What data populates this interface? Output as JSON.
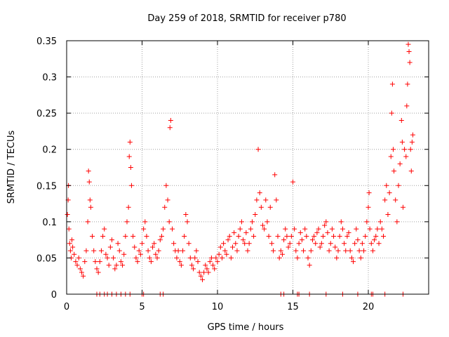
{
  "chart_data": {
    "type": "scatter",
    "title": "Day 259 of 2018, SRMTID for receiver p780",
    "xlabel": "GPS time / hours",
    "ylabel": "SRMTID / TECUs",
    "xlim": [
      0,
      24
    ],
    "ylim": [
      0,
      0.35
    ],
    "xticks": [
      0,
      5,
      10,
      15,
      20
    ],
    "xtick_labels": [
      "0",
      "5",
      "10",
      "15",
      "20"
    ],
    "yticks": [
      0,
      0.05,
      0.1,
      0.15,
      0.2,
      0.25,
      0.3,
      0.35
    ],
    "ytick_labels": [
      "0",
      "0.05",
      "0.1",
      "0.15",
      "0.2",
      "0.25",
      "0.3",
      "0.35"
    ],
    "grid": true,
    "marker": "plus",
    "series": [
      {
        "name": "SRMTID",
        "color": "#ff0000",
        "description": "dense '+' scatter of SRMTID values vs time (sampled from the figure)",
        "points": [
          [
            0.05,
            0.11
          ],
          [
            0.1,
            0.13
          ],
          [
            0.12,
            0.15
          ],
          [
            0.15,
            0.09
          ],
          [
            0.2,
            0.07
          ],
          [
            0.25,
            0.06
          ],
          [
            0.3,
            0.05
          ],
          [
            0.35,
            0.075
          ],
          [
            0.4,
            0.065
          ],
          [
            0.5,
            0.055
          ],
          [
            0.6,
            0.045
          ],
          [
            0.7,
            0.04
          ],
          [
            0.8,
            0.05
          ],
          [
            0.9,
            0.035
          ],
          [
            1.0,
            0.03
          ],
          [
            1.1,
            0.025
          ],
          [
            1.2,
            0.045
          ],
          [
            1.3,
            0.06
          ],
          [
            1.4,
            0.1
          ],
          [
            1.45,
            0.17
          ],
          [
            1.5,
            0.155
          ],
          [
            1.55,
            0.13
          ],
          [
            1.6,
            0.12
          ],
          [
            1.7,
            0.08
          ],
          [
            1.8,
            0.06
          ],
          [
            1.9,
            0.045
          ],
          [
            2.0,
            0.035
          ],
          [
            2.1,
            0.03
          ],
          [
            2.2,
            0.045
          ],
          [
            2.3,
            0.06
          ],
          [
            2.4,
            0.08
          ],
          [
            2.5,
            0.09
          ],
          [
            2.6,
            0.055
          ],
          [
            2.7,
            0.05
          ],
          [
            2.8,
            0.04
          ],
          [
            2.9,
            0.065
          ],
          [
            3.0,
            0.075
          ],
          [
            3.1,
            0.05
          ],
          [
            3.2,
            0.035
          ],
          [
            3.3,
            0.04
          ],
          [
            3.4,
            0.07
          ],
          [
            3.5,
            0.06
          ],
          [
            3.6,
            0.045
          ],
          [
            3.7,
            0.04
          ],
          [
            3.8,
            0.055
          ],
          [
            3.9,
            0.08
          ],
          [
            4.0,
            0.1
          ],
          [
            4.1,
            0.12
          ],
          [
            4.15,
            0.19
          ],
          [
            4.2,
            0.21
          ],
          [
            4.25,
            0.175
          ],
          [
            4.3,
            0.15
          ],
          [
            4.4,
            0.08
          ],
          [
            4.5,
            0.065
          ],
          [
            4.6,
            0.05
          ],
          [
            4.7,
            0.045
          ],
          [
            4.8,
            0.06
          ],
          [
            4.9,
            0.055
          ],
          [
            5.0,
            0.07
          ],
          [
            5.1,
            0.09
          ],
          [
            5.2,
            0.1
          ],
          [
            5.3,
            0.08
          ],
          [
            5.4,
            0.06
          ],
          [
            5.5,
            0.05
          ],
          [
            5.6,
            0.045
          ],
          [
            5.7,
            0.065
          ],
          [
            5.8,
            0.07
          ],
          [
            5.9,
            0.055
          ],
          [
            6.0,
            0.05
          ],
          [
            6.1,
            0.06
          ],
          [
            6.2,
            0.075
          ],
          [
            6.3,
            0.08
          ],
          [
            6.4,
            0.09
          ],
          [
            6.5,
            0.12
          ],
          [
            6.6,
            0.15
          ],
          [
            6.7,
            0.13
          ],
          [
            6.8,
            0.1
          ],
          [
            6.85,
            0.23
          ],
          [
            6.9,
            0.24
          ],
          [
            7.0,
            0.09
          ],
          [
            7.1,
            0.07
          ],
          [
            7.2,
            0.06
          ],
          [
            7.3,
            0.05
          ],
          [
            7.4,
            0.06
          ],
          [
            7.5,
            0.045
          ],
          [
            7.6,
            0.04
          ],
          [
            7.7,
            0.06
          ],
          [
            7.8,
            0.08
          ],
          [
            7.9,
            0.11
          ],
          [
            8.0,
            0.1
          ],
          [
            8.1,
            0.07
          ],
          [
            8.2,
            0.05
          ],
          [
            8.3,
            0.04
          ],
          [
            8.4,
            0.035
          ],
          [
            8.5,
            0.05
          ],
          [
            8.6,
            0.06
          ],
          [
            8.7,
            0.045
          ],
          [
            8.8,
            0.03
          ],
          [
            8.9,
            0.025
          ],
          [
            9.0,
            0.02
          ],
          [
            9.1,
            0.03
          ],
          [
            9.2,
            0.04
          ],
          [
            9.3,
            0.035
          ],
          [
            9.4,
            0.03
          ],
          [
            9.5,
            0.045
          ],
          [
            9.6,
            0.05
          ],
          [
            9.7,
            0.04
          ],
          [
            9.8,
            0.035
          ],
          [
            9.9,
            0.05
          ],
          [
            10.0,
            0.045
          ],
          [
            10.1,
            0.055
          ],
          [
            10.2,
            0.065
          ],
          [
            10.3,
            0.05
          ],
          [
            10.4,
            0.07
          ],
          [
            10.5,
            0.06
          ],
          [
            10.6,
            0.055
          ],
          [
            10.7,
            0.075
          ],
          [
            10.8,
            0.08
          ],
          [
            10.9,
            0.05
          ],
          [
            11.0,
            0.065
          ],
          [
            11.1,
            0.085
          ],
          [
            11.2,
            0.07
          ],
          [
            11.3,
            0.06
          ],
          [
            11.4,
            0.08
          ],
          [
            11.5,
            0.09
          ],
          [
            11.6,
            0.1
          ],
          [
            11.7,
            0.075
          ],
          [
            11.8,
            0.07
          ],
          [
            11.9,
            0.085
          ],
          [
            12.0,
            0.06
          ],
          [
            12.1,
            0.07
          ],
          [
            12.2,
            0.09
          ],
          [
            12.3,
            0.1
          ],
          [
            12.4,
            0.08
          ],
          [
            12.5,
            0.11
          ],
          [
            12.6,
            0.13
          ],
          [
            12.7,
            0.2
          ],
          [
            12.8,
            0.14
          ],
          [
            12.9,
            0.12
          ],
          [
            13.0,
            0.095
          ],
          [
            13.1,
            0.09
          ],
          [
            13.2,
            0.13
          ],
          [
            13.3,
            0.1
          ],
          [
            13.4,
            0.08
          ],
          [
            13.5,
            0.12
          ],
          [
            13.6,
            0.07
          ],
          [
            13.7,
            0.06
          ],
          [
            13.8,
            0.165
          ],
          [
            13.9,
            0.13
          ],
          [
            14.0,
            0.08
          ],
          [
            14.1,
            0.05
          ],
          [
            14.2,
            0.06
          ],
          [
            14.3,
            0.055
          ],
          [
            14.4,
            0.075
          ],
          [
            14.5,
            0.09
          ],
          [
            14.6,
            0.08
          ],
          [
            14.7,
            0.065
          ],
          [
            14.8,
            0.07
          ],
          [
            14.9,
            0.08
          ],
          [
            15.0,
            0.155
          ],
          [
            15.1,
            0.09
          ],
          [
            15.2,
            0.06
          ],
          [
            15.3,
            0.05
          ],
          [
            15.4,
            0.07
          ],
          [
            15.5,
            0.085
          ],
          [
            15.6,
            0.075
          ],
          [
            15.7,
            0.06
          ],
          [
            15.8,
            0.09
          ],
          [
            15.9,
            0.08
          ],
          [
            16.0,
            0.05
          ],
          [
            16.1,
            0.04
          ],
          [
            16.2,
            0.06
          ],
          [
            16.3,
            0.075
          ],
          [
            16.4,
            0.08
          ],
          [
            16.5,
            0.07
          ],
          [
            16.6,
            0.085
          ],
          [
            16.7,
            0.09
          ],
          [
            16.8,
            0.065
          ],
          [
            16.9,
            0.07
          ],
          [
            17.0,
            0.08
          ],
          [
            17.1,
            0.095
          ],
          [
            17.2,
            0.1
          ],
          [
            17.3,
            0.085
          ],
          [
            17.4,
            0.06
          ],
          [
            17.5,
            0.07
          ],
          [
            17.6,
            0.09
          ],
          [
            17.7,
            0.08
          ],
          [
            17.8,
            0.065
          ],
          [
            17.9,
            0.05
          ],
          [
            18.0,
            0.06
          ],
          [
            18.1,
            0.08
          ],
          [
            18.2,
            0.1
          ],
          [
            18.3,
            0.09
          ],
          [
            18.4,
            0.07
          ],
          [
            18.5,
            0.06
          ],
          [
            18.6,
            0.08
          ],
          [
            18.7,
            0.085
          ],
          [
            18.8,
            0.06
          ],
          [
            18.9,
            0.05
          ],
          [
            19.0,
            0.045
          ],
          [
            19.1,
            0.07
          ],
          [
            19.2,
            0.09
          ],
          [
            19.3,
            0.075
          ],
          [
            19.4,
            0.06
          ],
          [
            19.5,
            0.05
          ],
          [
            19.6,
            0.07
          ],
          [
            19.7,
            0.06
          ],
          [
            19.8,
            0.08
          ],
          [
            19.9,
            0.1
          ],
          [
            20.0,
            0.12
          ],
          [
            20.05,
            0.14
          ],
          [
            20.1,
            0.09
          ],
          [
            20.2,
            0.07
          ],
          [
            20.3,
            0.06
          ],
          [
            20.4,
            0.075
          ],
          [
            20.5,
            0.08
          ],
          [
            20.6,
            0.09
          ],
          [
            20.7,
            0.07
          ],
          [
            20.8,
            0.1
          ],
          [
            20.9,
            0.09
          ],
          [
            21.0,
            0.08
          ],
          [
            21.1,
            0.13
          ],
          [
            21.2,
            0.15
          ],
          [
            21.3,
            0.11
          ],
          [
            21.4,
            0.14
          ],
          [
            21.5,
            0.19
          ],
          [
            21.55,
            0.25
          ],
          [
            21.6,
            0.29
          ],
          [
            21.65,
            0.2
          ],
          [
            21.7,
            0.17
          ],
          [
            21.8,
            0.13
          ],
          [
            21.9,
            0.1
          ],
          [
            22.0,
            0.15
          ],
          [
            22.1,
            0.18
          ],
          [
            22.2,
            0.24
          ],
          [
            22.25,
            0.21
          ],
          [
            22.3,
            0.12
          ],
          [
            22.4,
            0.2
          ],
          [
            22.5,
            0.19
          ],
          [
            22.55,
            0.26
          ],
          [
            22.6,
            0.29
          ],
          [
            22.65,
            0.345
          ],
          [
            22.7,
            0.335
          ],
          [
            22.75,
            0.32
          ],
          [
            22.8,
            0.2
          ],
          [
            22.85,
            0.17
          ],
          [
            22.9,
            0.21
          ],
          [
            22.95,
            0.22
          ]
        ]
      },
      {
        "name": "zero values",
        "color": "#ff0000",
        "description": "points lying on y = 0",
        "points": [
          [
            2.0,
            0
          ],
          [
            2.2,
            0
          ],
          [
            2.5,
            0
          ],
          [
            2.7,
            0
          ],
          [
            3.0,
            0
          ],
          [
            3.3,
            0
          ],
          [
            3.6,
            0
          ],
          [
            3.9,
            0
          ],
          [
            4.2,
            0
          ],
          [
            5.0,
            0
          ],
          [
            5.1,
            0
          ],
          [
            6.2,
            0
          ],
          [
            6.4,
            0
          ],
          [
            14.2,
            0
          ],
          [
            14.4,
            0
          ],
          [
            15.3,
            0
          ],
          [
            15.4,
            0
          ],
          [
            16.1,
            0
          ],
          [
            17.2,
            0
          ],
          [
            18.3,
            0
          ],
          [
            19.3,
            0
          ],
          [
            20.2,
            0
          ],
          [
            20.3,
            0
          ],
          [
            21.1,
            0
          ],
          [
            22.3,
            0
          ]
        ]
      }
    ]
  }
}
